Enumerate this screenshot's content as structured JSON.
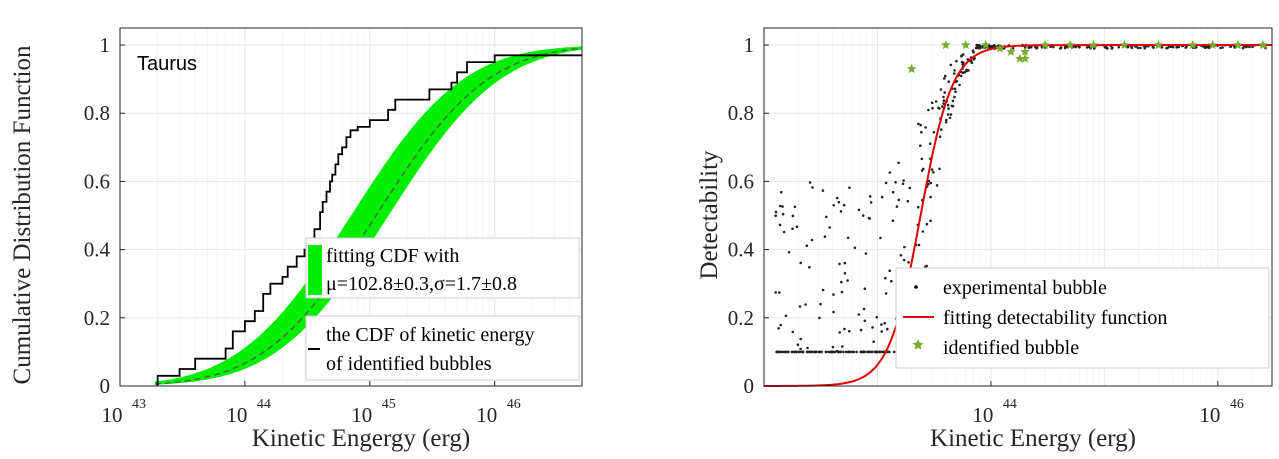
{
  "chart_data": [
    {
      "type": "line",
      "annotation": "Taurus",
      "xlabel": "Kinetic Engergy (erg)",
      "ylabel": "Cumulative Distribution Function",
      "xscale": "log",
      "xlim": [
        1e+43,
        5e+46
      ],
      "ylim": [
        0,
        1.05
      ],
      "x_ticks": [
        "43",
        "44",
        "45",
        "46"
      ],
      "y_ticks": [
        "0",
        "0.2",
        "0.4",
        "0.6",
        "0.8",
        "1"
      ],
      "grid": true,
      "legend_position": "lower-right",
      "legend": [
        {
          "line1": "fitting CDF with",
          "line2": "μ=102.8±0.3,σ=1.7±0.8",
          "color": "#00ee00"
        },
        {
          "line1": "the CDF of kinetic energy",
          "line2": "of identified bubbles",
          "color": "#000000"
        }
      ],
      "band": {
        "color": "#00ee00",
        "center_log10": 44.95,
        "low_log10": 44.85,
        "high_log10": 45.15,
        "sigma_log10": 0.7
      },
      "fit_line": {
        "style": "dashed",
        "color": "#555555",
        "center_log10": 45.05,
        "sigma_log10": 0.7
      },
      "step_cdf": {
        "color": "#000000",
        "x": [
          2e+43,
          3e+43,
          4e+43,
          7e+43,
          8e+43,
          1e+44,
          1.2e+44,
          1.4e+44,
          1.6e+44,
          2e+44,
          2.2e+44,
          2.6e+44,
          3e+44,
          3.3e+44,
          3.6e+44,
          4e+44,
          4.2e+44,
          4.5e+44,
          4.8e+44,
          5e+44,
          5.3e+44,
          5.6e+44,
          6e+44,
          6.5e+44,
          7e+44,
          8e+44,
          1e+45,
          1.4e+45,
          1.6e+45,
          2e+45,
          3e+45,
          4.5e+45,
          5e+45,
          6e+45,
          7e+45,
          1e+46,
          1.5e+46,
          5e+46
        ],
        "y": [
          0.03,
          0.05,
          0.08,
          0.11,
          0.16,
          0.19,
          0.22,
          0.27,
          0.3,
          0.32,
          0.35,
          0.38,
          0.4,
          0.43,
          0.46,
          0.51,
          0.54,
          0.57,
          0.6,
          0.62,
          0.65,
          0.68,
          0.7,
          0.73,
          0.75,
          0.76,
          0.78,
          0.81,
          0.84,
          0.84,
          0.87,
          0.89,
          0.92,
          0.95,
          0.95,
          0.97,
          0.97,
          0.97
        ]
      }
    },
    {
      "type": "scatter",
      "xlabel": "Kinetic Energy (erg)",
      "ylabel": "Detectability",
      "xscale": "log",
      "xlim": [
        1e+42,
        3e+46
      ],
      "ylim": [
        0,
        1.05
      ],
      "x_ticks": [
        "44",
        "46"
      ],
      "y_ticks": [
        "0",
        "0.2",
        "0.4",
        "0.6",
        "0.8",
        "1"
      ],
      "grid": true,
      "legend_position": "lower-right",
      "legend": [
        {
          "label": "experimental bubble",
          "color": "#000000",
          "marker": "dot"
        },
        {
          "label": "fitting detectability function",
          "color": "#e00000",
          "marker": "line"
        },
        {
          "label": "identified bubble",
          "color": "#77ac30",
          "marker": "star"
        }
      ],
      "fit": {
        "type": "logistic",
        "center_log10": 43.38,
        "slope_log10": 0.14
      },
      "identified_bubbles": {
        "x": [
          2e+43,
          4e+43,
          6e+43,
          9e+43,
          1.2e+44,
          1.5e+44,
          1.8e+44,
          2e+44,
          2e+44,
          3e+44,
          5e+44,
          8e+44,
          1.5e+45,
          3e+45,
          6e+45,
          9e+45,
          1.5e+46,
          2.5e+46
        ],
        "y": [
          0.93,
          1.0,
          1.0,
          1.0,
          0.99,
          0.98,
          0.96,
          0.96,
          0.98,
          1.0,
          1.0,
          1.0,
          1.0,
          1.0,
          1.0,
          1.0,
          1.0,
          1.0
        ]
      },
      "experimental_bubbles_note": ""
    }
  ]
}
